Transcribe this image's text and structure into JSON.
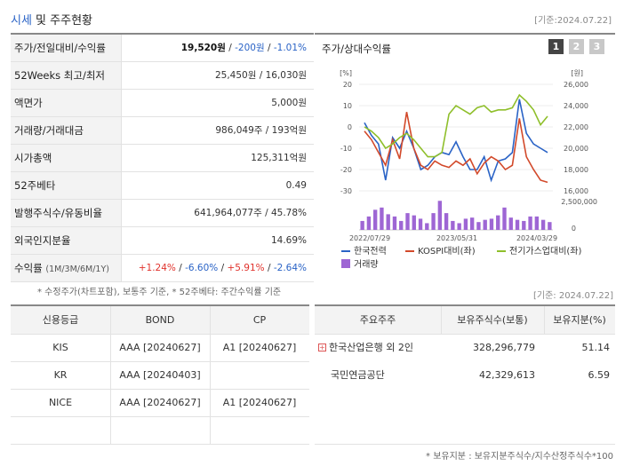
{
  "header": {
    "title_prefix": "시세",
    "title_suffix": " 및 주주현황",
    "date": "[기준:2024.07.22]"
  },
  "price_rows": [
    {
      "label": "주가/전일대비/수익률",
      "price": "19,520원",
      "change": "-200원",
      "rate": "-1.01%"
    },
    {
      "label": "52Weeks 최고/최저",
      "value": "25,450원 / 16,030원"
    },
    {
      "label": "액면가",
      "value": "5,000원"
    },
    {
      "label": "거래량/거래대금",
      "value": "986,049주 / 193억원"
    },
    {
      "label": "시가총액",
      "value": "125,311억원"
    },
    {
      "label": "52주베타",
      "value": "0.49"
    },
    {
      "label": "발행주식수/유동비율",
      "value": "641,964,077주 / 45.78%"
    },
    {
      "label": "외국인지분율",
      "value": "14.69%"
    },
    {
      "label": "수익률",
      "label_sub": "(1M/3M/6M/1Y)",
      "r1": "+1.24%",
      "r2": "-6.60%",
      "r3": "+5.91%",
      "r4": "-2.64%"
    }
  ],
  "footnote": "* 수정주가(차트포함), 보통주 기준, * 52주베타: 주간수익률 기준",
  "chart_panel": {
    "title": "주가/상대수익률",
    "tabs": [
      "1",
      "2",
      "3"
    ],
    "date": "[기준: 2024.07.22]"
  },
  "chart_data": {
    "type": "line",
    "left_axis": {
      "unit": "[%]",
      "ticks": [
        20,
        10,
        0,
        -10,
        -20,
        -30
      ],
      "ylim": [
        -30,
        20
      ]
    },
    "right_axis": {
      "unit": "[원]",
      "ticks": [
        "26,000",
        "24,000",
        "22,000",
        "20,000",
        "18,000",
        "16,000"
      ],
      "ylim": [
        16000,
        26000
      ]
    },
    "volume_axis": {
      "ticks": [
        "2,500,000",
        "0"
      ]
    },
    "x_labels": [
      "2022/07/29",
      "2023/05/31",
      "2024/03/29"
    ],
    "series": [
      {
        "name": "한국전력",
        "color": "#2a63c6",
        "axis": "left",
        "values": [
          2,
          -4,
          -8,
          -25,
          -5,
          -10,
          -2,
          -10,
          -20,
          -18,
          -14,
          -12,
          -13,
          -7,
          -14,
          -20,
          -20,
          -14,
          -25,
          -16,
          -15,
          -12,
          13,
          -3,
          -8,
          -10,
          -12
        ]
      },
      {
        "name": "KOSPI대비(좌)",
        "color": "#d2492a",
        "axis": "left",
        "values": [
          -2,
          -6,
          -12,
          -18,
          -6,
          -15,
          7,
          -10,
          -18,
          -20,
          -16,
          -18,
          -19,
          -16,
          -18,
          -15,
          -22,
          -17,
          -14,
          -16,
          -20,
          -18,
          4,
          -14,
          -20,
          -25,
          -26
        ]
      },
      {
        "name": "전기가스업대비(좌)",
        "color": "#8fbf2b",
        "axis": "left",
        "values": [
          0,
          -2,
          -5,
          -10,
          -8,
          -5,
          -3,
          -6,
          -10,
          -14,
          -14,
          -12,
          6,
          10,
          8,
          6,
          9,
          10,
          7,
          8,
          8,
          9,
          15,
          12,
          8,
          1,
          5
        ]
      }
    ],
    "volume": {
      "name": "거래량",
      "color": "#9e66d4",
      "values": [
        0.8,
        1.2,
        1.8,
        2.0,
        1.4,
        1.2,
        0.8,
        1.5,
        1.3,
        1.0,
        0.6,
        1.5,
        2.6,
        1.5,
        0.8,
        0.6,
        1.0,
        1.1,
        0.7,
        0.9,
        1.0,
        1.3,
        2.0,
        1.1,
        0.9,
        0.8,
        1.2,
        1.2,
        0.9,
        0.7
      ]
    }
  },
  "credit": {
    "headers": [
      "신용등급",
      "BOND",
      "CP"
    ],
    "rows": [
      {
        "agency": "KIS",
        "bond": "AAA [20240627]",
        "cp": "A1 [20240627]"
      },
      {
        "agency": "KR",
        "bond": "AAA [20240403]",
        "cp": ""
      },
      {
        "agency": "NICE",
        "bond": "AAA [20240627]",
        "cp": "A1 [20240627]"
      }
    ]
  },
  "holders": {
    "headers": [
      "주요주주",
      "보유주식수(보통)",
      "보유지분(%)"
    ],
    "rows": [
      {
        "name": "한국산업은행 외 2인",
        "expandable": true,
        "shares": "328,296,779",
        "pct": "51.14"
      },
      {
        "name": "국민연금공단",
        "expandable": false,
        "shares": "42,329,613",
        "pct": "6.59"
      }
    ]
  },
  "footnote2": "* 보유지분 : 보유지분주식수/지수산정주식수*100"
}
